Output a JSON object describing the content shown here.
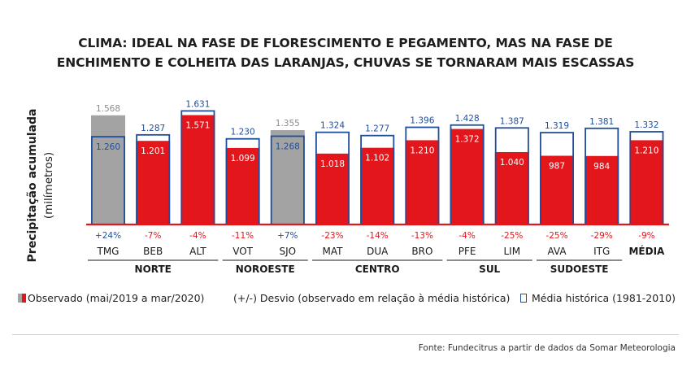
{
  "title_line1": "CLIMA: IDEAL NA FASE DE FLORESCIMENTO E PEGAMENTO, MAS NA FASE DE",
  "title_line2": "ENCHIMENTO E COLHEITA DAS LARANJAS, CHUVAS SE TORNARAM MAIS ESCASSAS",
  "colors": {
    "observed": "#e3161b",
    "observed_gray": "#a3a3a3",
    "historical": "#1f4e9a",
    "deviation_neg": "#e3161b",
    "deviation_pos": "#1f4e9a",
    "baseline": "#e3161b",
    "value_gray": "#8c8c8c"
  },
  "legend": {
    "observed": "Observado (mai/2019 a mar/2020)",
    "deviation": "(+/-) Desvio (observado em relação à média histórica)",
    "historical": "Média histórica (1981-2010)"
  },
  "source": "Fonte: Fundecitrus a partir de dados da Somar Meteorologia",
  "chart_data": {
    "type": "bar",
    "ylabel": "Precipitação acumulada",
    "ylabel_unit": "(milímetros)",
    "categories": [
      "TMG",
      "BEB",
      "ALT",
      "VOT",
      "SJO",
      "MAT",
      "DUA",
      "BRO",
      "PFE",
      "LIM",
      "AVA",
      "ITG",
      "MÉDIA"
    ],
    "groups": [
      {
        "name": "NORTE",
        "start": 0,
        "end": 2
      },
      {
        "name": "NOROESTE",
        "start": 3,
        "end": 4
      },
      {
        "name": "CENTRO",
        "start": 5,
        "end": 7
      },
      {
        "name": "SUL",
        "start": 8,
        "end": 9
      },
      {
        "name": "SUDOESTE",
        "start": 10,
        "end": 11
      }
    ],
    "series": [
      {
        "name": "Observado (mai/2019 a mar/2020)",
        "values": [
          1568,
          1201,
          1571,
          1099,
          1355,
          1018,
          1102,
          1210,
          1372,
          1040,
          987,
          984,
          1210
        ],
        "labels": [
          "1.568",
          "1.201",
          "1.571",
          "1.099",
          "1.355",
          "1.018",
          "1.102",
          "1.210",
          "1.372",
          "1.040",
          "987",
          "984",
          "1.210"
        ]
      },
      {
        "name": "Média histórica (1981-2010)",
        "values": [
          1260,
          1287,
          1631,
          1230,
          1268,
          1324,
          1277,
          1396,
          1428,
          1387,
          1319,
          1381,
          1332
        ],
        "labels": [
          "1.260",
          "1.287",
          "1.631",
          "1.230",
          "1.268",
          "1.324",
          "1.277",
          "1.396",
          "1.428",
          "1.387",
          "1.319",
          "1.381",
          "1.332"
        ]
      }
    ],
    "gray_categories": [
      "TMG",
      "SJO"
    ],
    "deviation": [
      "+24%",
      "-7%",
      "-4%",
      "-11%",
      "+7%",
      "-23%",
      "-14%",
      "-13%",
      "-4%",
      "-25%",
      "-25%",
      "-29%",
      "-9%"
    ]
  }
}
